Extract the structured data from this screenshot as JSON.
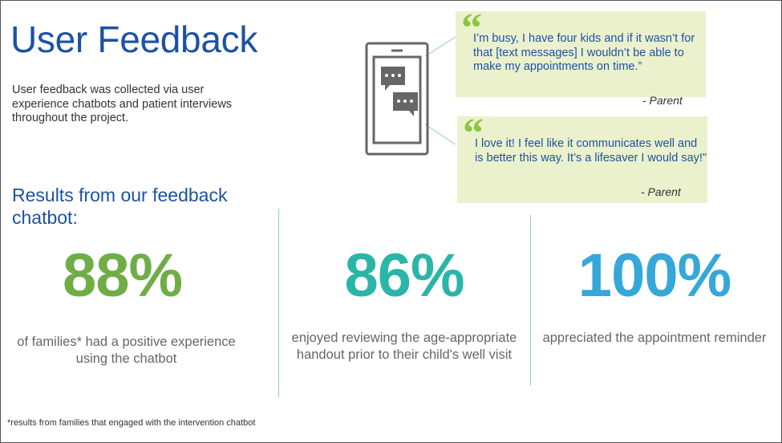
{
  "header": {
    "title": "User Feedback",
    "intro": "User feedback was collected via user experience chatbots and patient interviews throughout the project."
  },
  "quotes": [
    {
      "text": "I’m busy, I have four kids and if it wasn’t for that [text messages] I wouldn’t be able to make my appointments on time.”",
      "attribution": "- Parent",
      "mark": "“"
    },
    {
      "text": "I love it! I feel like it communicates well and is better this way. It’s a lifesaver I would say!”",
      "attribution": "- Parent",
      "mark": "“"
    }
  ],
  "results": {
    "heading": "Results from our feedback chatbot:",
    "stats": [
      {
        "value": "88%",
        "description": "of families* had a positive experience using the chatbot",
        "color": "#70ad47"
      },
      {
        "value": "86%",
        "description": "enjoyed reviewing the age-appropriate handout prior to their child's well visit",
        "color": "#2bb5a8"
      },
      {
        "value": "100%",
        "description": "appreciated the appointment reminder",
        "color": "#35a7d9"
      }
    ]
  },
  "footnote": "*results from families that engaged with the intervention chatbot",
  "icons": {
    "phone": "smartphone-chat-icon",
    "quote": "quote-mark-icon"
  }
}
